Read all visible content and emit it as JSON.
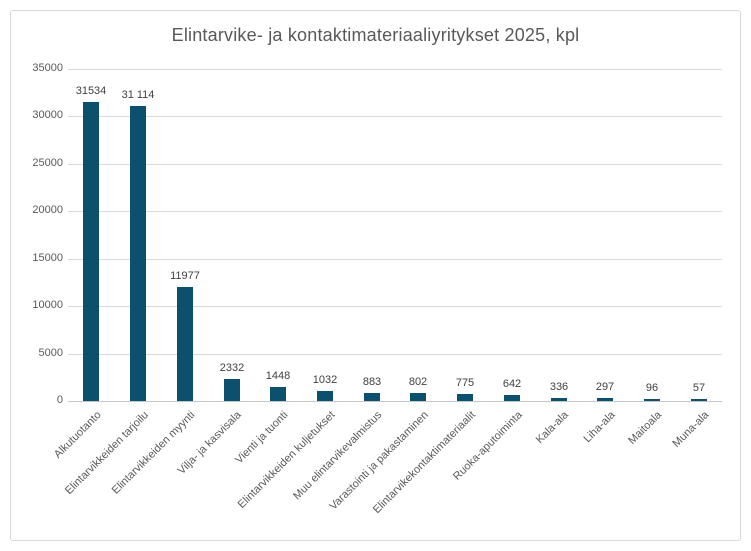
{
  "chart_data": {
    "type": "bar",
    "title": "Elintarvike- ja kontaktimateriaaliyritykset 2025, kpl",
    "categories": [
      "Alkutuotanto",
      "Elintarvikkeiden tarjoilu",
      "Elintarvikkeiden myynti",
      "Vilja- ja kasvisala",
      "Vienti ja tuonti",
      "Elintarvikkeiden kuljetukset",
      "Muu elintarvikevalmistus",
      "Varastointi ja pakastaminen",
      "Elintarvikekontaktimateriaalit",
      "Ruoka-aputoiminta",
      "Kala-ala",
      "Liha-ala",
      "Maitoala",
      "Muna-ala"
    ],
    "values": [
      31534,
      31114,
      11977,
      2332,
      1448,
      1032,
      883,
      802,
      775,
      642,
      336,
      297,
      96,
      57
    ],
    "value_labels": [
      "31534",
      "31 114",
      "11977",
      "2332",
      "1448",
      "1032",
      "883",
      "802",
      "775",
      "642",
      "336",
      "297",
      "96",
      "57"
    ],
    "xlabel": "",
    "ylabel": "",
    "ylim": [
      0,
      35000
    ],
    "yticks": [
      0,
      5000,
      10000,
      15000,
      20000,
      25000,
      30000,
      35000
    ],
    "grid": "horizontal",
    "legend_position": "none"
  },
  "colors": {
    "bar": "#0d506e",
    "title_text": "#595959",
    "axis_text": "#595959",
    "value_label_text": "#404040",
    "gridline": "#d9d9d9",
    "axis_line": "#c6c6c6",
    "frame_border": "#d9d9d9",
    "background": "#ffffff"
  }
}
